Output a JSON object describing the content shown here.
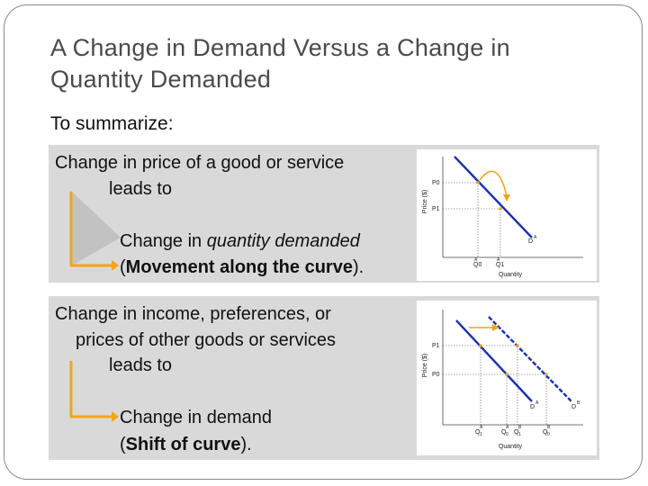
{
  "title": {
    "line1": "A Change in Demand Versus a Change in",
    "line2": "Quantity Demanded"
  },
  "subtitle": "To summarize:",
  "panel1": {
    "line1": "Change in price of a good or service",
    "line2": "leads to",
    "result_pre": "Change in ",
    "result_italic": "quantity demanded",
    "paren_open": "(",
    "paren_bold": "Movement along the curve",
    "paren_close": ")."
  },
  "panel2": {
    "line1": "Change in income, preferences, or",
    "line2": "prices of other goods or services",
    "line3": "leads to",
    "result": "Change in demand",
    "paren_open": "(",
    "paren_bold": "Shift of curve",
    "paren_close": ")."
  },
  "chart1": {
    "ylabel": "Price ($)",
    "xlabel": "Quantity",
    "p0": "P0",
    "p1": "P1",
    "q0": "Q0",
    "q1": "Q1",
    "q0_sup": "A",
    "q1_sup": "A",
    "curve": "D",
    "curve_sup": "A"
  },
  "chart2": {
    "ylabel": "Price ($)",
    "xlabel": "Quantity",
    "p0": "P0",
    "p1": "P1",
    "q_labels": [
      "Q",
      "Q",
      "Q",
      "Q"
    ],
    "q_subs": [
      "1",
      "0",
      "1",
      "0"
    ],
    "q_sups": [
      "A",
      "A",
      "B",
      "B"
    ],
    "curve_a": "D",
    "curve_a_sup": "A",
    "curve_b": "D",
    "curve_b_sup": "B"
  },
  "colors": {
    "curve": "#1a2fb5",
    "arrow": "#f2a51a",
    "point": "#f2a51a",
    "panel": "#d9d9d9",
    "title": "#4a4a4a"
  }
}
